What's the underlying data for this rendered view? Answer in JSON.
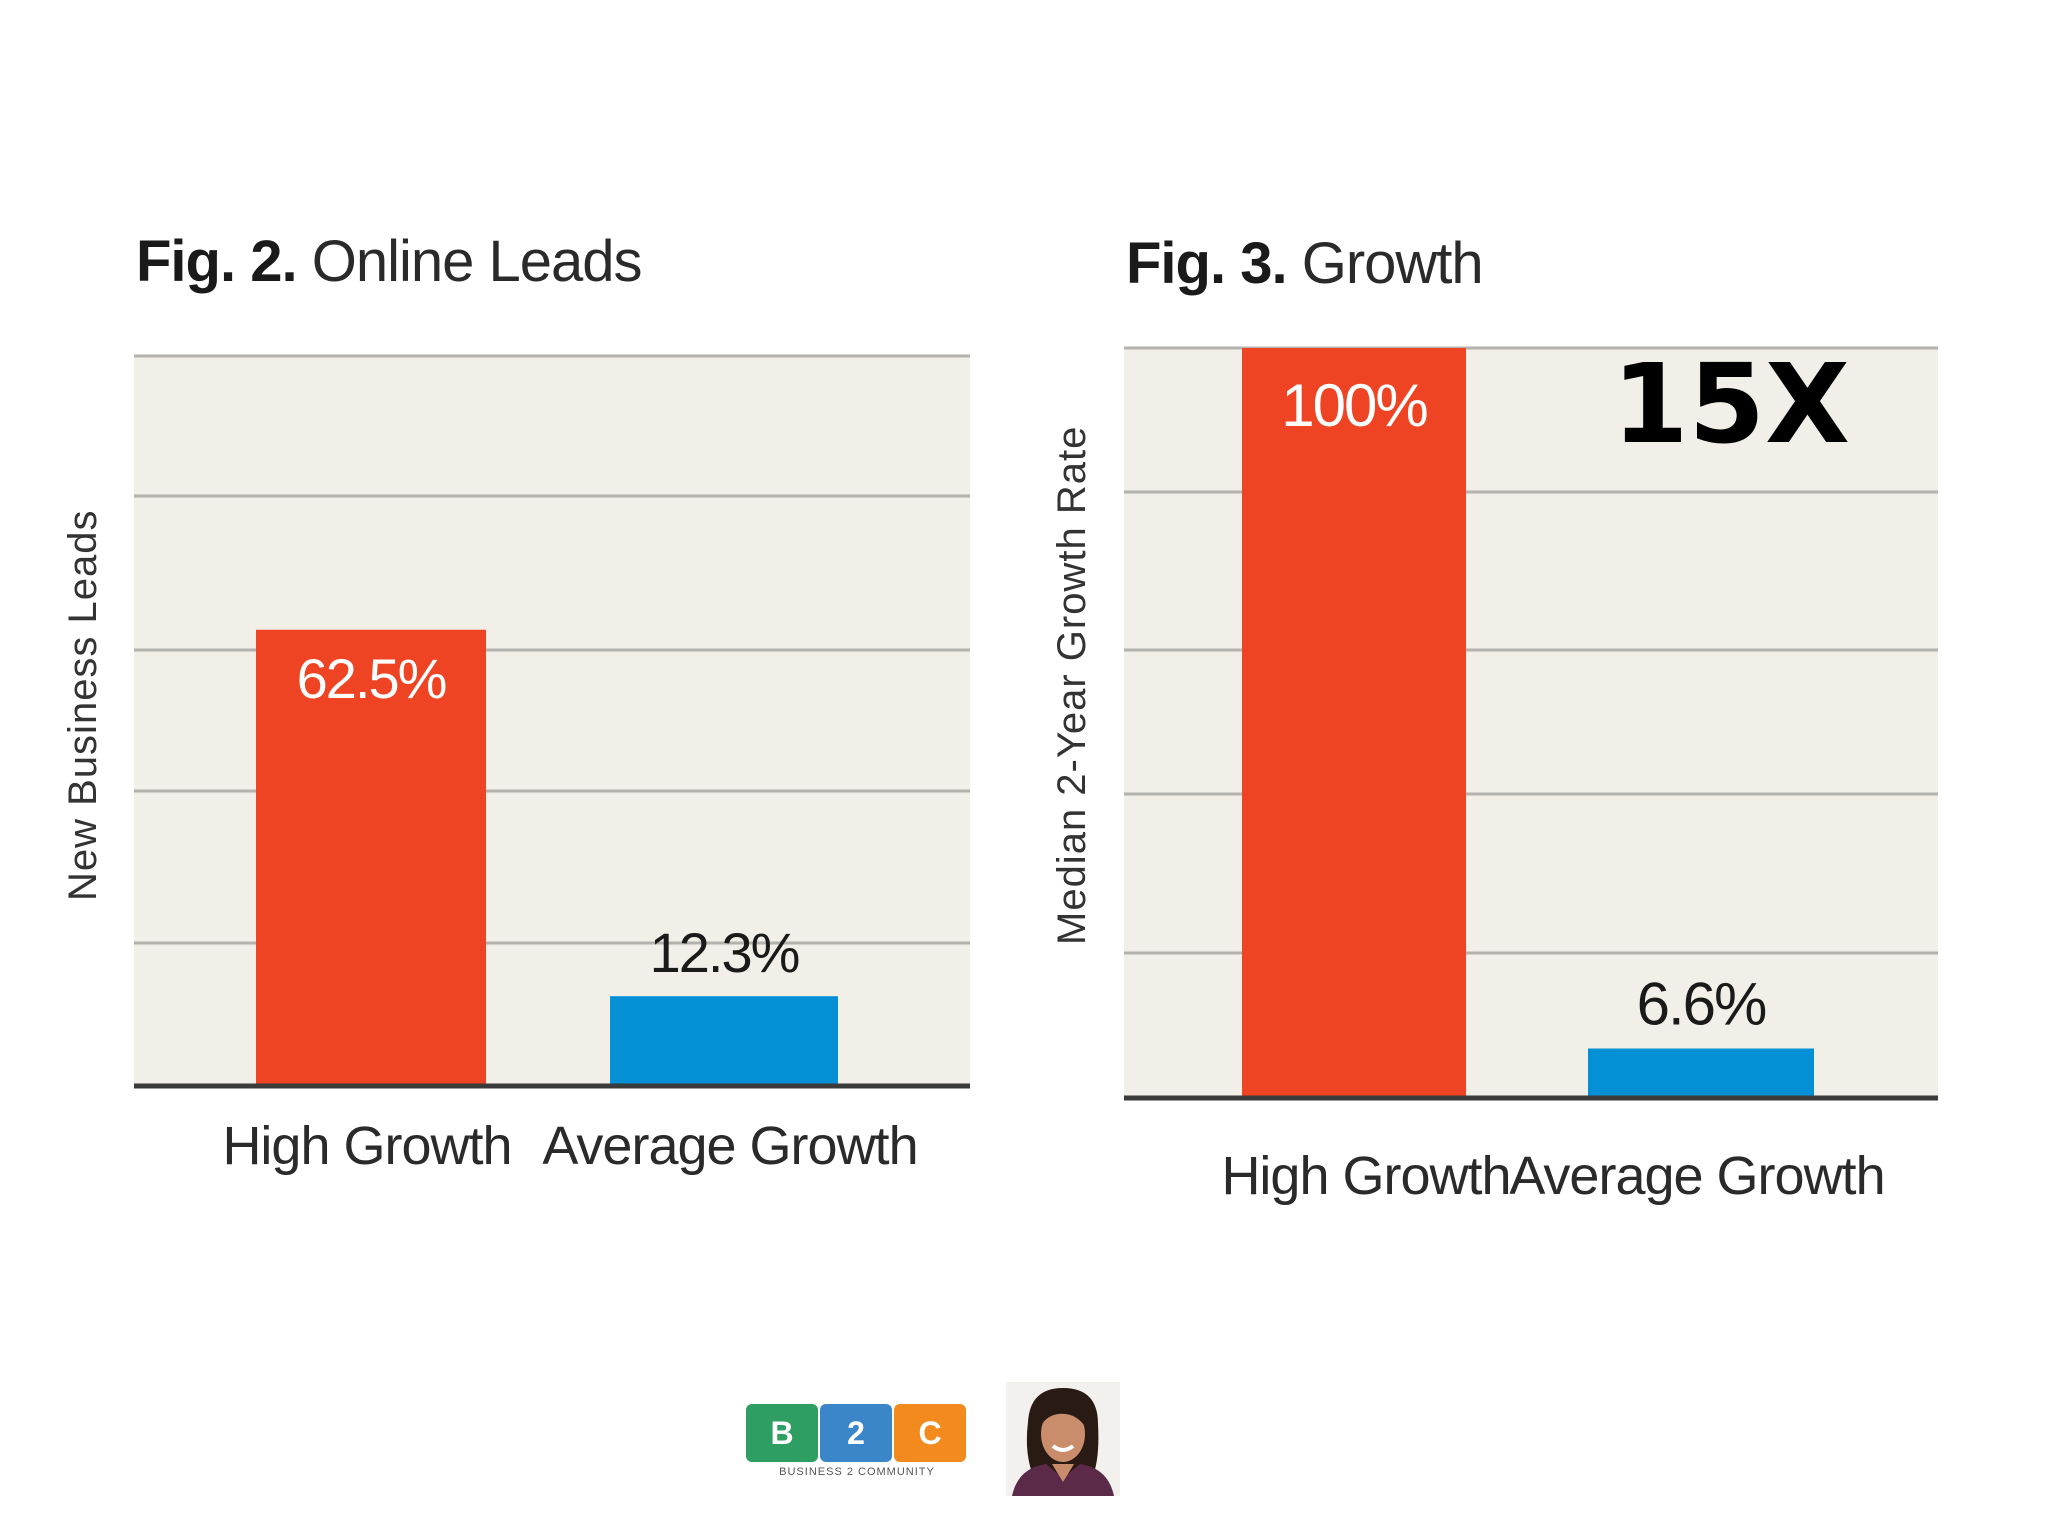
{
  "chart_data": [
    {
      "type": "bar",
      "fig_number": "Fig. 2.",
      "title": "Online Leads",
      "categories": [
        "High Growth",
        "Average Growth"
      ],
      "values": [
        62.5,
        12.3
      ],
      "labels": [
        "62.5%",
        "12.3%"
      ],
      "ylabel": "New Business Leads",
      "xlabel": "",
      "ylim": [
        0,
        100
      ],
      "grid": true,
      "colors": [
        "#ef4423",
        "#0590d6"
      ]
    },
    {
      "type": "bar",
      "fig_number": "Fig. 3.",
      "title": "Growth",
      "categories": [
        "High Growth",
        "Average Growth"
      ],
      "values": [
        100,
        6.6
      ],
      "labels": [
        "100%",
        "6.6%"
      ],
      "ylabel": "Median 2-Year Growth Rate",
      "xlabel": "",
      "ylim": [
        0,
        100
      ],
      "grid": true,
      "colors": [
        "#ef4423",
        "#0590d6"
      ],
      "annotation": "15X"
    }
  ],
  "footer": {
    "logo_letters": [
      "B",
      "2",
      "C"
    ],
    "logo_tagline": "BUSINESS 2 COMMUNITY",
    "logo_colors": [
      "#2f9e63",
      "#3a86c8",
      "#f28a1e"
    ],
    "avatar_alt": "presenter photo"
  }
}
